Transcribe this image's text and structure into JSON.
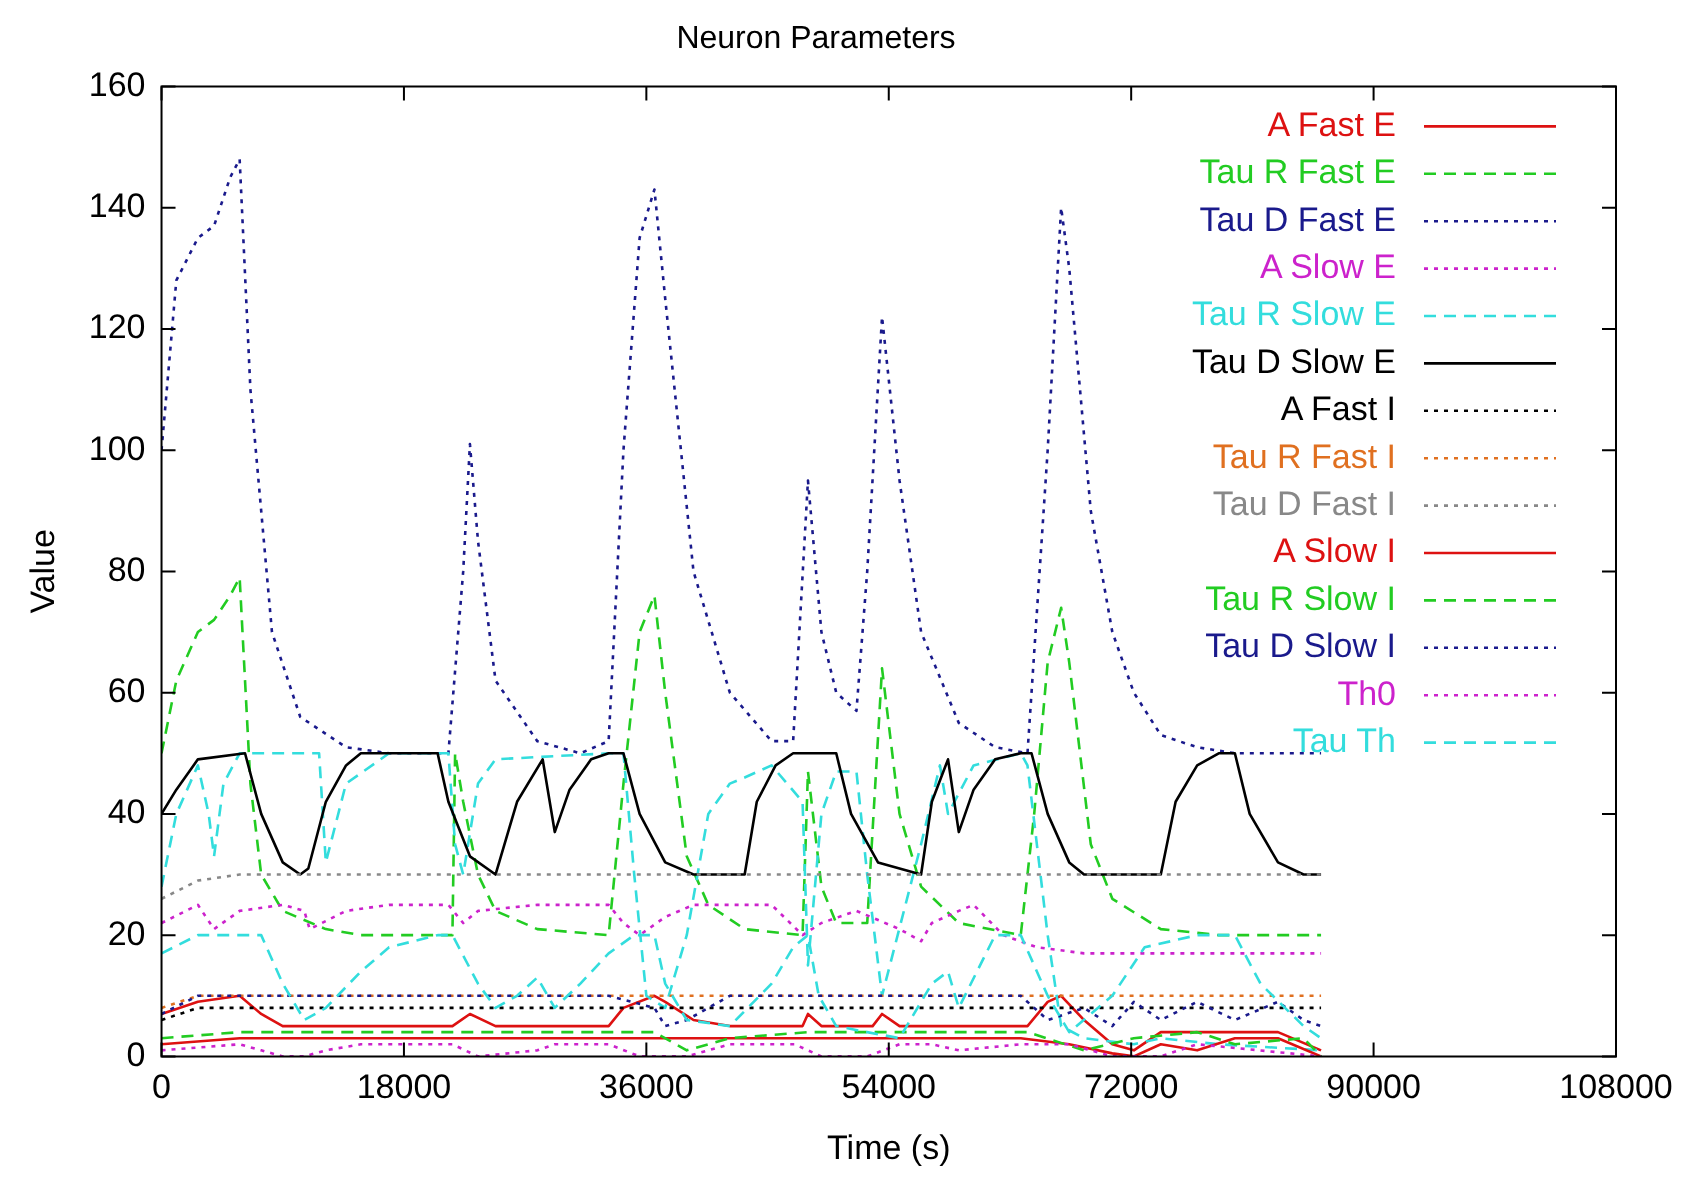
{
  "chart_data": {
    "type": "line",
    "title": "Neuron Parameters",
    "xlabel": "Time (s)",
    "ylabel": "Value",
    "xlim": [
      0,
      108000
    ],
    "ylim": [
      0,
      160
    ],
    "xticks": [
      0,
      18000,
      36000,
      54000,
      72000,
      90000,
      108000
    ],
    "yticks": [
      0,
      20,
      40,
      60,
      80,
      100,
      120,
      140,
      160
    ],
    "grid": false,
    "legend": "top right",
    "marker": "none",
    "series": [
      {
        "name": "A Fast E",
        "color": "#dd1111",
        "line_style": "solid",
        "x": [
          0,
          2700,
          5800,
          7400,
          9000,
          21600,
          22900,
          24800,
          33200,
          34300,
          36600,
          37400,
          39500,
          42200,
          47600,
          48000,
          49000,
          52800,
          53500,
          54800,
          64300,
          65800,
          66800,
          68500,
          70600,
          72200,
          74200,
          76900,
          79700,
          82900,
          86100
        ],
        "values": [
          7,
          9,
          10,
          7,
          5,
          5,
          7,
          5,
          5,
          8,
          10,
          9,
          6,
          5,
          5,
          7,
          5,
          5,
          7,
          5,
          5,
          9,
          10,
          6,
          2,
          1,
          4,
          4,
          4,
          4,
          1
        ]
      },
      {
        "name": "Tau R Fast E",
        "color": "#22cc22",
        "line_style": "dashed",
        "x": [
          0,
          1100,
          2700,
          3900,
          5100,
          5800,
          6600,
          7400,
          9000,
          12200,
          14800,
          21600,
          21800,
          22400,
          23500,
          24800,
          27900,
          33200,
          34300,
          35500,
          36600,
          37400,
          39000,
          40600,
          43300,
          47600,
          48000,
          49000,
          50100,
          52400,
          53500,
          54800,
          56400,
          59200,
          63800,
          64800,
          65800,
          66800,
          67400,
          69000,
          70600,
          74200,
          78500,
          86100
        ],
        "values": [
          50,
          62,
          70,
          72,
          76,
          79,
          45,
          30,
          24,
          21,
          20,
          20,
          50,
          42,
          30,
          24,
          21,
          20,
          45,
          70,
          76,
          60,
          33,
          25,
          21,
          20,
          47,
          28,
          22,
          22,
          64,
          40,
          28,
          22,
          20,
          40,
          65,
          74,
          65,
          35,
          26,
          21,
          20,
          20
        ]
      },
      {
        "name": "Tau D Fast E",
        "color": "#1a1a8c",
        "line_style": "dotted",
        "x": [
          0,
          1100,
          2700,
          3900,
          5100,
          5800,
          6600,
          8200,
          10300,
          13700,
          16900,
          21300,
          22400,
          22900,
          23500,
          24800,
          27900,
          31100,
          33200,
          34300,
          35500,
          36600,
          37400,
          39500,
          42200,
          45300,
          46900,
          48000,
          49000,
          50100,
          51600,
          52400,
          53500,
          54800,
          56400,
          59200,
          61900,
          64300,
          65800,
          66800,
          67400,
          69000,
          70600,
          72200,
          74200,
          76900,
          79700,
          86100
        ],
        "values": [
          100,
          128,
          135,
          137,
          145,
          148,
          110,
          70,
          56,
          51,
          50,
          50,
          80,
          101,
          85,
          62,
          52,
          50,
          52,
          100,
          135,
          143,
          125,
          80,
          60,
          52,
          52,
          95,
          70,
          60,
          57,
          80,
          122,
          95,
          70,
          55,
          51,
          50,
          100,
          140,
          130,
          90,
          70,
          60,
          53,
          51,
          50,
          50
        ]
      },
      {
        "name": "A Slow E",
        "color": "#cc22cc",
        "line_style": "dotted",
        "x": [
          0,
          2700,
          3900,
          5800,
          9000,
          10600,
          11000,
          13700,
          16900,
          21300,
          22400,
          23500,
          27900,
          33200,
          34300,
          35500,
          37400,
          39500,
          45300,
          47600,
          49000,
          51600,
          54800,
          56400,
          57200,
          59200,
          60300,
          62500,
          65000,
          68500,
          86100
        ],
        "values": [
          22,
          25,
          21,
          24,
          25,
          24,
          21,
          24,
          25,
          25,
          22,
          24,
          25,
          25,
          22,
          20,
          23,
          25,
          25,
          20,
          22,
          24,
          21,
          19,
          22,
          24,
          25,
          20,
          18,
          17,
          17
        ]
      },
      {
        "name": "Tau R Slow E",
        "color": "#33dddd",
        "line_style": "dashed",
        "x": [
          0,
          1100,
          2700,
          3500,
          3900,
          4600,
          5800,
          11700,
          12200,
          13700,
          16900,
          21300,
          21800,
          22400,
          23500,
          24800,
          33200,
          34300,
          35100,
          36000,
          37400,
          39000,
          40600,
          42200,
          43300,
          45300,
          47600,
          48000,
          49000,
          50100,
          51600,
          52400,
          53500,
          56400,
          57800,
          58400,
          60300,
          63800,
          64300,
          65800,
          66800,
          68500,
          72200,
          74200,
          78500,
          86100
        ],
        "values": [
          28,
          40,
          48,
          40,
          33,
          45,
          50,
          50,
          32,
          45,
          50,
          50,
          35,
          30,
          45,
          49,
          50,
          50,
          30,
          10,
          8,
          20,
          40,
          45,
          46,
          48,
          42,
          15,
          40,
          47,
          47,
          30,
          10,
          35,
          48,
          40,
          48,
          50,
          48,
          20,
          5,
          3,
          2,
          3,
          2,
          1
        ]
      },
      {
        "name": "Tau D Slow E",
        "color": "#000000",
        "line_style": "solid",
        "x": [
          0,
          1100,
          2700,
          6200,
          7400,
          9000,
          10300,
          10900,
          12200,
          13700,
          14800,
          20500,
          21300,
          22900,
          24800,
          26400,
          28300,
          29200,
          30300,
          31900,
          33200,
          34300,
          35500,
          37400,
          39500,
          43300,
          44200,
          45600,
          46900,
          50100,
          51200,
          53200,
          56400,
          57200,
          58400,
          59200,
          60300,
          61900,
          63800,
          64600,
          65800,
          67400,
          68500,
          74200,
          75300,
          76900,
          78500,
          79700,
          80800,
          82900,
          84800,
          86100
        ],
        "values": [
          40,
          44,
          49,
          50,
          40,
          32,
          30,
          31,
          42,
          48,
          50,
          50,
          42,
          33,
          30,
          42,
          49,
          37,
          44,
          49,
          50,
          50,
          40,
          32,
          30,
          30,
          42,
          48,
          50,
          50,
          40,
          32,
          30,
          42,
          49,
          37,
          44,
          49,
          50,
          50,
          40,
          32,
          30,
          30,
          42,
          48,
          50,
          50,
          40,
          32,
          30,
          30
        ]
      },
      {
        "name": "A Fast I",
        "color": "#000000",
        "line_style": "dotted",
        "x": [
          0,
          2700,
          86100
        ],
        "values": [
          6,
          8,
          8
        ]
      },
      {
        "name": "Tau R Fast I",
        "color": "#e07020",
        "line_style": "dotted",
        "x": [
          0,
          2700,
          86100
        ],
        "values": [
          8,
          10,
          10
        ]
      },
      {
        "name": "Tau D Fast I",
        "color": "#888888",
        "line_style": "dotted",
        "x": [
          0,
          2700,
          5800,
          86100
        ],
        "values": [
          26,
          29,
          30,
          30
        ]
      },
      {
        "name": "A Slow I",
        "color": "#dd1111",
        "line_style": "solid",
        "x": [
          0,
          5800,
          48000,
          52400,
          54800,
          63800,
          67400,
          70600,
          72200,
          74200,
          76900,
          79700,
          82900,
          86100
        ],
        "values": [
          2,
          3,
          3,
          3,
          3,
          3,
          2,
          0.5,
          0,
          2,
          1,
          3,
          3,
          0
        ]
      },
      {
        "name": "Tau R Slow I",
        "color": "#22cc22",
        "line_style": "dashed",
        "x": [
          0,
          5800,
          36600,
          39000,
          42200,
          48000,
          64300,
          68500,
          72200,
          76900,
          79700,
          84800,
          86100
        ],
        "values": [
          3,
          4,
          4,
          1,
          3,
          4,
          4,
          1,
          3,
          4,
          2,
          3,
          0
        ]
      },
      {
        "name": "Tau D Slow I",
        "color": "#1a1a8c",
        "line_style": "dotted",
        "x": [
          0,
          2700,
          33200,
          36600,
          37400,
          39000,
          42200,
          63800,
          65800,
          68500,
          70600,
          72200,
          74200,
          76900,
          79700,
          82900,
          84800,
          86100
        ],
        "values": [
          7,
          10,
          10,
          8,
          5,
          6,
          10,
          10,
          6,
          8,
          5,
          9,
          6,
          9,
          6,
          9,
          6,
          5
        ]
      },
      {
        "name": "Th0",
        "color": "#cc22cc",
        "line_style": "dotted",
        "x": [
          0,
          5800,
          7400,
          9000,
          10600,
          12200,
          14800,
          21600,
          23500,
          27900,
          29200,
          33200,
          35500,
          39000,
          42200,
          47000,
          48000,
          49000,
          52400,
          54800,
          57200,
          59200,
          63800,
          67400,
          70600,
          74200,
          76900,
          86100
        ],
        "values": [
          1,
          2,
          1,
          0,
          0,
          1,
          2,
          2,
          0,
          1,
          2,
          2,
          0,
          0,
          2,
          2,
          1,
          0,
          0,
          2,
          2,
          1,
          2,
          2,
          0,
          0,
          2,
          0
        ]
      },
      {
        "name": "Tau Th",
        "color": "#33dddd",
        "line_style": "dashed",
        "x": [
          0,
          2700,
          5800,
          7400,
          9000,
          10600,
          12200,
          14800,
          16900,
          20500,
          21600,
          23500,
          24800,
          26400,
          27900,
          29200,
          31100,
          33200,
          35100,
          36600,
          37400,
          39000,
          42200,
          45300,
          46900,
          48000,
          48800,
          50100,
          52400,
          54800,
          57200,
          58400,
          59200,
          61900,
          63800,
          65800,
          67400,
          70600,
          73000,
          76900,
          79700,
          81600,
          84800,
          86100
        ],
        "values": [
          17,
          20,
          20,
          20,
          12,
          6,
          8,
          14,
          18,
          20,
          20,
          12,
          8,
          10,
          13,
          8,
          12,
          17,
          20,
          20,
          12,
          6,
          5,
          12,
          18,
          20,
          10,
          5,
          4,
          3,
          12,
          14,
          8,
          20,
          20,
          10,
          4,
          10,
          18,
          20,
          20,
          12,
          5,
          3
        ]
      }
    ]
  }
}
